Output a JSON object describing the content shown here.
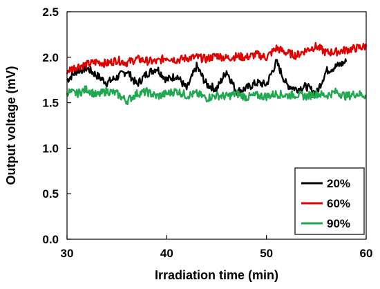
{
  "chart_data": {
    "type": "line",
    "title": "",
    "xlabel": "Irradiation time (min)",
    "ylabel": "Output voltage (mV)",
    "xlim": [
      30,
      60
    ],
    "ylim": [
      0.0,
      2.5
    ],
    "x_ticks": [
      "30",
      "40",
      "50",
      "60"
    ],
    "y_ticks": [
      "0.0",
      "0.5",
      "1.0",
      "1.5",
      "2.0",
      "2.5"
    ],
    "grid": false,
    "legend_position": "bottom-right",
    "series": [
      {
        "name": "20%",
        "color": "#000000",
        "x": [
          30,
          31,
          32,
          33,
          34,
          35,
          36,
          37,
          38,
          39,
          40,
          41,
          42,
          43,
          44,
          45,
          46,
          47,
          48,
          49,
          50,
          51,
          52,
          53,
          54,
          55,
          56,
          57,
          58
        ],
        "values": [
          1.75,
          1.85,
          1.88,
          1.8,
          1.72,
          1.78,
          1.85,
          1.7,
          1.82,
          1.88,
          1.75,
          1.8,
          1.65,
          1.9,
          1.7,
          1.65,
          1.85,
          1.62,
          1.66,
          1.72,
          1.7,
          1.95,
          1.7,
          1.65,
          1.68,
          1.6,
          1.85,
          1.9,
          1.95
        ]
      },
      {
        "name": "60%",
        "color": "#e00000",
        "x": [
          30,
          31,
          32,
          33,
          34,
          35,
          36,
          37,
          38,
          39,
          40,
          41,
          42,
          43,
          44,
          45,
          46,
          47,
          48,
          49,
          50,
          51,
          52,
          53,
          54,
          55,
          56,
          57,
          58,
          59,
          60
        ],
        "values": [
          1.85,
          1.9,
          1.92,
          1.95,
          1.93,
          1.97,
          1.94,
          1.98,
          1.96,
          1.95,
          2.0,
          1.97,
          1.99,
          2.0,
          1.98,
          2.02,
          1.99,
          2.01,
          2.0,
          2.03,
          2.0,
          2.1,
          2.05,
          2.02,
          2.08,
          2.12,
          2.05,
          2.06,
          2.08,
          2.1,
          2.12
        ]
      },
      {
        "name": "90%",
        "color": "#1fa84f",
        "x": [
          30,
          31,
          32,
          33,
          34,
          35,
          36,
          37,
          38,
          39,
          40,
          41,
          42,
          43,
          44,
          45,
          46,
          47,
          48,
          49,
          50,
          51,
          52,
          53,
          54,
          55,
          56,
          57,
          58,
          59,
          60
        ],
        "values": [
          1.62,
          1.6,
          1.65,
          1.58,
          1.63,
          1.6,
          1.52,
          1.6,
          1.62,
          1.57,
          1.6,
          1.63,
          1.58,
          1.6,
          1.55,
          1.58,
          1.57,
          1.6,
          1.56,
          1.58,
          1.57,
          1.6,
          1.58,
          1.59,
          1.57,
          1.6,
          1.58,
          1.62,
          1.57,
          1.6,
          1.58
        ]
      }
    ]
  }
}
